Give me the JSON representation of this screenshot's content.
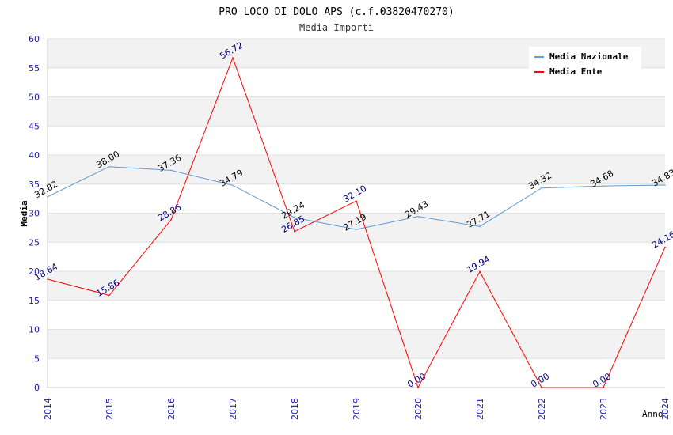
{
  "chart_data": {
    "type": "line",
    "title": "PRO LOCO DI DOLO APS (c.f.03820470270)",
    "subtitle": "Media Importi",
    "xlabel": "Anno",
    "ylabel": "Media",
    "ylim": [
      0,
      60
    ],
    "yticks": [
      "0",
      "5",
      "10",
      "15",
      "20",
      "25",
      "30",
      "35",
      "40",
      "45",
      "50",
      "55",
      "60"
    ],
    "categories": [
      "2014",
      "2015",
      "2016",
      "2017",
      "2018",
      "2019",
      "2020",
      "2021",
      "2022",
      "2023",
      "2024"
    ],
    "grid": true,
    "legend_position": "top-right",
    "series": [
      {
        "name": "Media Nazionale",
        "color": "#5b9bd5",
        "label_color": "#000000",
        "values": [
          32.82,
          38.0,
          37.36,
          34.79,
          29.24,
          27.19,
          29.43,
          27.71,
          34.32,
          34.68,
          34.83
        ],
        "labels": [
          "32.82",
          "38.00",
          "37.36",
          "34.79",
          "29.24",
          "27.19",
          "29.43",
          "27.71",
          "34.32",
          "34.68",
          "34.83"
        ]
      },
      {
        "name": "Media Ente",
        "color": "#ff0000",
        "label_color": "#000080",
        "values": [
          18.64,
          15.86,
          28.86,
          56.72,
          26.85,
          32.1,
          0.0,
          19.94,
          0.0,
          0.0,
          24.16
        ],
        "labels": [
          "18.64",
          "15.86",
          "28.86",
          "56.72",
          "26.85",
          "32.10",
          "0.00",
          "19.94",
          "0.00",
          "0.00",
          "24.16"
        ]
      }
    ]
  }
}
